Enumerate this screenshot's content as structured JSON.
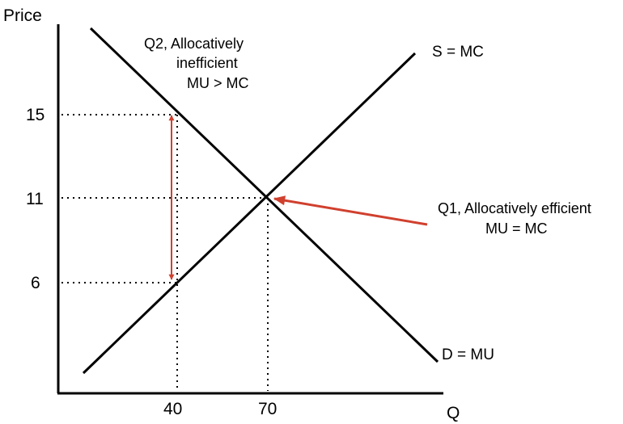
{
  "chart_data": {
    "type": "line",
    "ylabel": "Price",
    "xlabel": "Q",
    "x_ticks": [
      "40",
      "70"
    ],
    "y_ticks": [
      "15",
      "11",
      "6"
    ],
    "series": [
      {
        "name": "S = MC",
        "x": [
          10,
          70,
          107
        ],
        "y": [
          1.7,
          11,
          18.8
        ]
      },
      {
        "name": "D = MU",
        "x": [
          13,
          70,
          112
        ],
        "y": [
          21.1,
          11,
          2.1
        ]
      }
    ],
    "reference_lines": [
      {
        "axis": "y",
        "value": 15,
        "from_x": 0,
        "to_x": 40
      },
      {
        "axis": "y",
        "value": 11,
        "from_x": 0,
        "to_x": 70
      },
      {
        "axis": "y",
        "value": 6,
        "from_x": 0,
        "to_x": 40
      },
      {
        "axis": "x",
        "value": 40,
        "from_y": 0,
        "to_y": 15
      },
      {
        "axis": "x",
        "value": 70,
        "from_y": 0,
        "to_y": 11
      }
    ],
    "annotations": [
      {
        "text": [
          "Q2, Allocatively",
          "inefficient",
          "MU > MC"
        ]
      },
      {
        "text": [
          "Q1, Allocatively efficient",
          "MU = MC"
        ]
      }
    ],
    "arrows": [
      {
        "type": "double",
        "x": 40,
        "y_from": 6,
        "y_to": 15,
        "color": "#d0402e"
      },
      {
        "type": "pointer",
        "from_x": 112,
        "from_y": 8.5,
        "to_x": 70,
        "to_y": 11,
        "color": "#d0402e"
      }
    ],
    "xlim": [
      0,
      112
    ],
    "ylim": [
      0,
      24
    ],
    "grid": false,
    "colors": {
      "curves": "#000000",
      "arrows": "#d0402e"
    }
  }
}
